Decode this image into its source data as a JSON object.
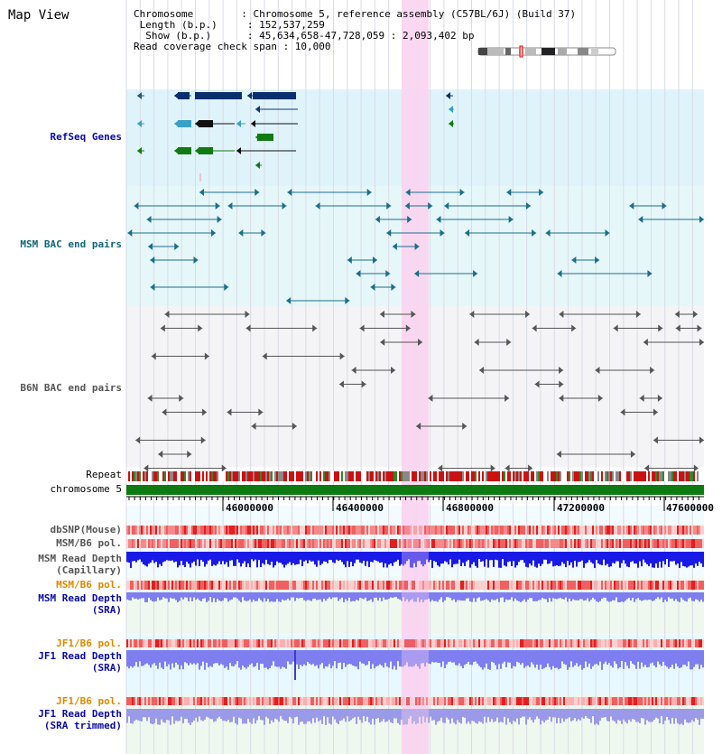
{
  "view": {
    "title": "Map View",
    "info_lines": [
      "Chromosome        : Chromosome 5, reference assembly (C57BL/6J) (Build 37)",
      " Length (b.p.)     : 152,537,259",
      "  Show (b.p.)      : 45,634,658-47,728,059 : 2,093,402 bp",
      "Read coverage check span : 10,000"
    ]
  },
  "tracks": {
    "refseq": "RefSeq Genes",
    "msm_bac": "MSM BAC end pairs",
    "b6n_bac": "B6N BAC end pairs",
    "repeat": "Repeat",
    "chromosome": "chromosome 5",
    "dbsnp": "dbSNP(Mouse)",
    "msm_pol1": "MSM/B6 pol.",
    "msm_cap_1": "MSM Read Depth",
    "msm_cap_2": "(Capillary)",
    "msm_pol2": "MSM/B6 pol.",
    "msm_sra_1": "MSM Read Depth",
    "msm_sra_2": "(SRA)",
    "jf1_pol1": "JF1/B6 pol.",
    "jf1_sra_1": "JF1 Read Depth",
    "jf1_sra_2": "(SRA)",
    "jf1_pol2": "JF1/B6 pol.",
    "jf1_trim_1": "JF1 Read Depth",
    "jf1_trim_2": "(SRA trimmed)"
  },
  "ruler": {
    "ticks": [
      "46000000",
      "46400000",
      "46800000",
      "47200000",
      "47600000"
    ]
  },
  "colors": {
    "refseq_bg": "#dff3fb",
    "msm_bg": "#e6f7f9",
    "b6n_bg": "#f4f4f6",
    "highlight": "#f9d4f0",
    "gene_dark": "#0a2f6e",
    "gene_green": "#127a12",
    "msm_line": "#1a6e8a",
    "b6n_line": "#555555",
    "repeat_red": "#cc1111",
    "chrom_green": "#0d7a12",
    "depth_blue": "#1a1ae6",
    "depth_light": "#7e7ef0",
    "pol_red": "#f07070",
    "label_blue": "#0a0aa0",
    "label_orange": "#e08800",
    "label_teal": "#116677"
  }
}
